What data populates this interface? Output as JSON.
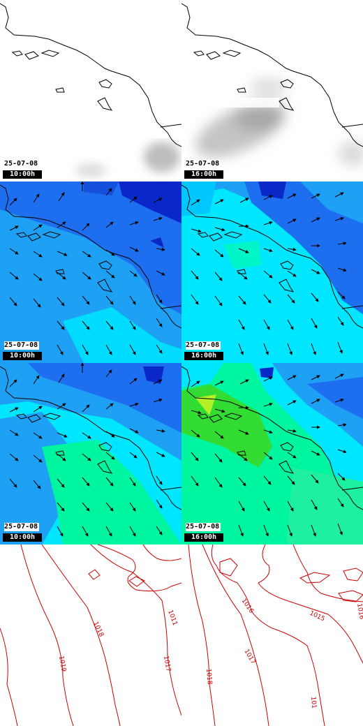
{
  "panels": [
    {
      "id": "cloud-1000",
      "date": "25-07-08",
      "time": "10:00h"
    },
    {
      "id": "cloud-1600",
      "date": "25-07-08",
      "time": "16:00h"
    },
    {
      "id": "wind-a-1000",
      "date": "25-07-08",
      "time": "10:00h"
    },
    {
      "id": "wind-a-1600",
      "date": "25-07-08",
      "time": "16:00h"
    },
    {
      "id": "wind-b-1000",
      "date": "25-07-08",
      "time": "10:00h"
    },
    {
      "id": "wind-b-1600",
      "date": "25-07-08",
      "time": "16:00h"
    }
  ],
  "isobars": {
    "left": [
      "1011",
      "1018",
      "1019",
      "1017"
    ],
    "right": [
      "1016",
      "1015",
      "1017",
      "1018",
      "1016",
      "101"
    ]
  },
  "colors": {
    "coast": "#000000",
    "isobar": "#cc0000",
    "wind_dark": "#0a28c8",
    "wind_mid": "#1e6ef0",
    "wind_light": "#1ea0f5",
    "wind_cyan": "#00e6ff",
    "wind_green": "#00f5a0",
    "wind_lime": "#32dc32"
  }
}
